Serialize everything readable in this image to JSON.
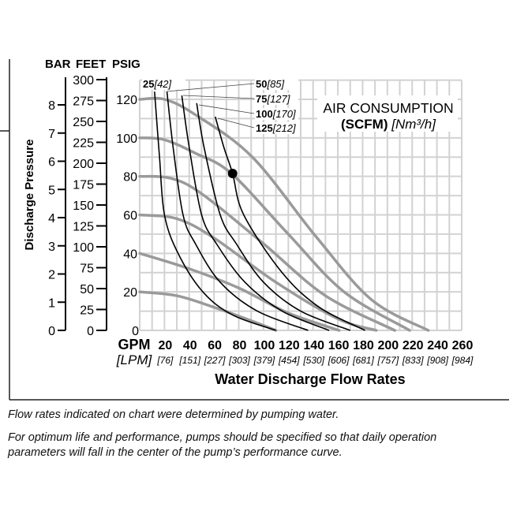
{
  "chart_data": {
    "type": "line",
    "xlabel": "Water Discharge Flow Rates",
    "ylabel": "Discharge Pressure",
    "x_unit_primary": "GPM",
    "x_unit_secondary": "[LPM]",
    "x_ticks": [
      20,
      40,
      60,
      80,
      100,
      120,
      140,
      160,
      180,
      200,
      220,
      240,
      260
    ],
    "x_ticks_secondary": [
      "[76]",
      "[151]",
      "[227]",
      "[303]",
      "[379]",
      "[454]",
      "[530]",
      "[606]",
      "[681]",
      "[757]",
      "[833]",
      "[908]",
      "[984]"
    ],
    "xlim": [
      0,
      260
    ],
    "ylim": [
      0,
      130
    ],
    "grid": true,
    "y_axes": [
      {
        "label": "BAR",
        "ticks": [
          0,
          1,
          2,
          3,
          4,
          5,
          6,
          7,
          8
        ]
      },
      {
        "label": "FEET",
        "ticks": [
          0,
          25,
          50,
          75,
          100,
          125,
          150,
          175,
          200,
          225,
          250,
          275,
          300
        ]
      },
      {
        "label": "PSIG",
        "ticks": [
          0,
          20,
          40,
          60,
          80,
          100,
          120
        ]
      }
    ],
    "legend_title": {
      "line1": "AIR CONSUMPTION",
      "bold": "(SCFM)",
      "italic": "[Nm³/h]"
    },
    "pressure_curves": [
      {
        "psig": 120,
        "points": [
          [
            0,
            120
          ],
          [
            20,
            120
          ],
          [
            45,
            112
          ],
          [
            91,
            90
          ],
          [
            142,
            49
          ],
          [
            187,
            16
          ],
          [
            233,
            0
          ]
        ]
      },
      {
        "psig": 100,
        "points": [
          [
            0,
            100
          ],
          [
            20,
            99
          ],
          [
            45,
            92
          ],
          [
            74,
            81.5
          ],
          [
            120,
            50
          ],
          [
            165,
            20
          ],
          [
            218,
            0
          ]
        ]
      },
      {
        "psig": 80,
        "points": [
          [
            0,
            80
          ],
          [
            25,
            79
          ],
          [
            50,
            71
          ],
          [
            100,
            45
          ],
          [
            150,
            18
          ],
          [
            206,
            0
          ]
        ]
      },
      {
        "psig": 60,
        "points": [
          [
            0,
            60
          ],
          [
            30,
            58
          ],
          [
            60,
            48
          ],
          [
            110,
            25
          ],
          [
            160,
            6
          ],
          [
            191,
            0
          ]
        ]
      },
      {
        "psig": 40,
        "points": [
          [
            0,
            40
          ],
          [
            40,
            32
          ],
          [
            80,
            22
          ],
          [
            120,
            9
          ],
          [
            161,
            0
          ]
        ]
      },
      {
        "psig": 20,
        "points": [
          [
            0,
            20
          ],
          [
            30,
            18
          ],
          [
            60,
            12
          ],
          [
            90,
            5
          ],
          [
            110,
            0
          ]
        ]
      }
    ],
    "air_consumption_curves": [
      {
        "label": "25",
        "label_metric": "[42]",
        "points": [
          [
            12,
            124
          ],
          [
            16,
            90
          ],
          [
            20,
            60
          ],
          [
            31,
            40
          ],
          [
            51,
            20
          ],
          [
            75,
            8
          ],
          [
            110,
            0
          ]
        ]
      },
      {
        "label": "50",
        "label_metric": "[85]",
        "points": [
          [
            22,
            124
          ],
          [
            27,
            95
          ],
          [
            35,
            60
          ],
          [
            45,
            45
          ],
          [
            65,
            25
          ],
          [
            95,
            10
          ],
          [
            136,
            0
          ]
        ]
      },
      {
        "label": "75",
        "label_metric": "[127]",
        "points": [
          [
            34,
            122
          ],
          [
            40,
            95
          ],
          [
            50,
            60
          ],
          [
            62,
            45
          ],
          [
            85,
            25
          ],
          [
            115,
            10
          ],
          [
            153,
            0
          ]
        ]
      },
      {
        "label": "100",
        "label_metric": "[170]",
        "points": [
          [
            46,
            118
          ],
          [
            52,
            95
          ],
          [
            65,
            60
          ],
          [
            78,
            45
          ],
          [
            100,
            25
          ],
          [
            130,
            10
          ],
          [
            170,
            0
          ]
        ]
      },
      {
        "label": "125",
        "label_metric": "[212]",
        "points": [
          [
            61,
            111
          ],
          [
            68,
            95
          ],
          [
            75,
            81.5
          ],
          [
            84,
            60
          ],
          [
            115,
            30
          ],
          [
            145,
            12
          ],
          [
            182,
            0
          ]
        ]
      }
    ],
    "marker": {
      "gpm": 75,
      "psig": 81.5
    },
    "colors": {
      "pressure_curve": "#9a9a9a",
      "air_curve": "#000000",
      "grid": "#d2d2d2"
    }
  },
  "notes": [
    "Flow rates indicated on chart were determined by pumping water.",
    "For optimum life and performance, pumps should be specified so that daily operation parameters will fall in the center of the pump’s performance curve."
  ]
}
